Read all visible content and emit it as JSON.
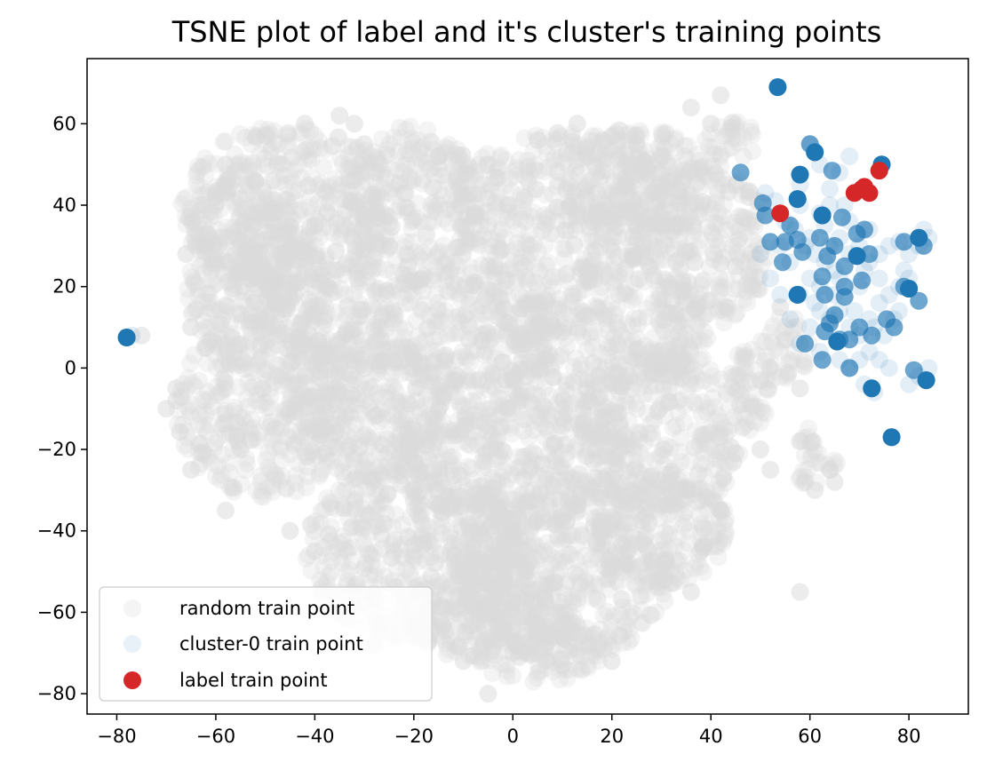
{
  "chart_data": {
    "type": "scatter",
    "title": "TSNE plot of label and it's cluster's training points",
    "xlabel": "",
    "ylabel": "",
    "xlim": [
      -86,
      92
    ],
    "ylim": [
      -85,
      76
    ],
    "x_ticks": [
      -80,
      -60,
      -40,
      -20,
      0,
      20,
      40,
      60,
      80
    ],
    "y_ticks": [
      60,
      40,
      20,
      0,
      -20,
      -40,
      -60,
      -80
    ],
    "x_tick_labels": [
      "−80",
      "−60",
      "−40",
      "−20",
      "0",
      "20",
      "40",
      "60",
      "80"
    ],
    "y_tick_labels": [
      "60",
      "40",
      "20",
      "0",
      "−20",
      "−40",
      "−60",
      "−80"
    ],
    "grid": false,
    "legend_position": "lower-left",
    "series": [
      {
        "name": "random train point",
        "color": "#d9d9d9",
        "opacity": 0.3,
        "regions": [
          {
            "cx": -45,
            "cy": 40,
            "rx": 22,
            "ry": 20
          },
          {
            "cx": -55,
            "cy": 25,
            "rx": 12,
            "ry": 22
          },
          {
            "cx": -40,
            "cy": 15,
            "rx": 16,
            "ry": 14
          },
          {
            "cx": -20,
            "cy": 40,
            "rx": 14,
            "ry": 20
          },
          {
            "cx": 10,
            "cy": 40,
            "rx": 22,
            "ry": 18
          },
          {
            "cx": 25,
            "cy": 45,
            "rx": 15,
            "ry": 14
          },
          {
            "cx": 38,
            "cy": 30,
            "rx": 14,
            "ry": 20
          },
          {
            "cx": -10,
            "cy": 10,
            "rx": 22,
            "ry": 16
          },
          {
            "cx": 20,
            "cy": 10,
            "rx": 20,
            "ry": 16
          },
          {
            "cx": -50,
            "cy": -10,
            "rx": 18,
            "ry": 22
          },
          {
            "cx": -30,
            "cy": -10,
            "rx": 16,
            "ry": 18
          },
          {
            "cx": 0,
            "cy": -20,
            "rx": 24,
            "ry": 20
          },
          {
            "cx": 30,
            "cy": -15,
            "rx": 18,
            "ry": 20
          },
          {
            "cx": -20,
            "cy": -45,
            "rx": 22,
            "ry": 22
          },
          {
            "cx": 10,
            "cy": -50,
            "rx": 22,
            "ry": 22
          },
          {
            "cx": 30,
            "cy": -40,
            "rx": 14,
            "ry": 14
          },
          {
            "cx": 5,
            "cy": -70,
            "rx": 14,
            "ry": 8
          },
          {
            "cx": -5,
            "cy": -60,
            "rx": 18,
            "ry": 12
          },
          {
            "cx": 48,
            "cy": -5,
            "rx": 5,
            "ry": 10
          },
          {
            "cx": 55,
            "cy": 5,
            "rx": 5,
            "ry": 8
          },
          {
            "cx": 44,
            "cy": 55,
            "rx": 6,
            "ry": 6
          },
          {
            "cx": 60,
            "cy": -22,
            "rx": 3,
            "ry": 8
          },
          {
            "cx": 64,
            "cy": -25,
            "rx": 2,
            "ry": 3
          }
        ],
        "points": [
          [
            -68,
            -8
          ],
          [
            -70,
            -10
          ],
          [
            -65,
            10
          ],
          [
            -75,
            8
          ],
          [
            -66,
            28
          ],
          [
            -62,
            30
          ],
          [
            -58,
            50
          ],
          [
            -50,
            57
          ],
          [
            -42,
            60
          ],
          [
            -35,
            62
          ],
          [
            -60,
            40
          ],
          [
            -30,
            55
          ],
          [
            -15,
            52
          ],
          [
            -5,
            50
          ],
          [
            5,
            56
          ],
          [
            13,
            60
          ],
          [
            20,
            57
          ],
          [
            25,
            55
          ],
          [
            30,
            52
          ],
          [
            36,
            64
          ],
          [
            40,
            60
          ],
          [
            42,
            67
          ],
          [
            45,
            45
          ],
          [
            45,
            25
          ],
          [
            43,
            15
          ],
          [
            -32,
            60
          ],
          [
            -48,
            22
          ],
          [
            -68,
            -5
          ],
          [
            -65,
            -25
          ],
          [
            -58,
            -35
          ],
          [
            -45,
            -40
          ],
          [
            -40,
            -45
          ],
          [
            -35,
            -60
          ],
          [
            -25,
            -65
          ],
          [
            -10,
            -72
          ],
          [
            0,
            -70
          ],
          [
            10,
            -73
          ],
          [
            20,
            -72
          ],
          [
            -5,
            -80
          ],
          [
            -17,
            -67
          ],
          [
            -28,
            -68
          ],
          [
            36,
            -55
          ],
          [
            35,
            -30
          ],
          [
            38,
            -45
          ],
          [
            42,
            -35
          ],
          [
            -55,
            -20
          ],
          [
            -62,
            5
          ],
          [
            55,
            7
          ],
          [
            54,
            15
          ],
          [
            58,
            -5
          ],
          [
            50,
            -3
          ],
          [
            58,
            -18
          ],
          [
            59,
            -28
          ],
          [
            61,
            -30
          ],
          [
            64,
            -25
          ],
          [
            65,
            -28
          ],
          [
            58,
            -55
          ],
          [
            50,
            -20
          ],
          [
            52,
            -25
          ],
          [
            25,
            35
          ],
          [
            -25,
            30
          ],
          [
            -40,
            35
          ],
          [
            15,
            -5
          ],
          [
            -15,
            -10
          ],
          [
            -5,
            25
          ],
          [
            30,
            0
          ],
          [
            -30,
            0
          ],
          [
            0,
            -40
          ],
          [
            20,
            -30
          ],
          [
            -20,
            -30
          ]
        ]
      },
      {
        "name": "cluster-0 train point",
        "color": "#1f77b4",
        "opacity": 0.12,
        "points": [
          [
            -77,
            8
          ],
          [
            51,
            43
          ],
          [
            53,
            41
          ],
          [
            55,
            36
          ],
          [
            57,
            34
          ],
          [
            59,
            30
          ],
          [
            61,
            28
          ],
          [
            63,
            26
          ],
          [
            65,
            24
          ],
          [
            60,
            22
          ],
          [
            62,
            20
          ],
          [
            58,
            18
          ],
          [
            66,
            14
          ],
          [
            64,
            12
          ],
          [
            68,
            10
          ],
          [
            70,
            8
          ],
          [
            56,
            26
          ],
          [
            54,
            30
          ],
          [
            52,
            22
          ],
          [
            50,
            28
          ],
          [
            62,
            38
          ],
          [
            66,
            32
          ],
          [
            70,
            30
          ],
          [
            72,
            26
          ],
          [
            74,
            22
          ],
          [
            76,
            18
          ],
          [
            78,
            14
          ],
          [
            80,
            28
          ],
          [
            82,
            30
          ],
          [
            84,
            32
          ],
          [
            83,
            34
          ],
          [
            78,
            31
          ],
          [
            72,
            4
          ],
          [
            74,
            2
          ],
          [
            76,
            0
          ],
          [
            80,
            -4
          ],
          [
            82,
            -2
          ],
          [
            84,
            0
          ],
          [
            73,
            -6
          ],
          [
            71,
            -4
          ],
          [
            60,
            55
          ],
          [
            62,
            50
          ],
          [
            58,
            45
          ],
          [
            64,
            40
          ],
          [
            68,
            36
          ],
          [
            60,
            10
          ],
          [
            58,
            6
          ],
          [
            62,
            4
          ],
          [
            66,
            2
          ],
          [
            68,
            0
          ],
          [
            70,
            2
          ],
          [
            72,
            12
          ],
          [
            74,
            16
          ],
          [
            70,
            20
          ],
          [
            66,
            22
          ],
          [
            62,
            14
          ],
          [
            56,
            12
          ],
          [
            54,
            18
          ],
          [
            60,
            32
          ],
          [
            64,
            30
          ],
          [
            68,
            28
          ],
          [
            72,
            34
          ],
          [
            76,
            30
          ],
          [
            80,
            22
          ],
          [
            78,
            20
          ],
          [
            74,
            28
          ],
          [
            58,
            40
          ],
          [
            64,
            44
          ],
          [
            66,
            48
          ],
          [
            68,
            52
          ],
          [
            63,
            35
          ],
          [
            67,
            40
          ],
          [
            61,
            16
          ],
          [
            65,
            18
          ],
          [
            69,
            14
          ],
          [
            71,
            24
          ],
          [
            73,
            10
          ],
          [
            75,
            8
          ],
          [
            77,
            12
          ],
          [
            79,
            24
          ]
        ]
      },
      {
        "name": "cluster-0 train point",
        "color": "#1f77b4",
        "opacity": 0.65,
        "points": [
          [
            -78,
            7.5
          ],
          [
            53.5,
            69
          ],
          [
            61,
            53
          ],
          [
            64.5,
            48.5
          ],
          [
            58,
            47.5
          ],
          [
            46,
            48
          ],
          [
            50.5,
            40.5
          ],
          [
            57.5,
            41.5
          ],
          [
            51,
            37.5
          ],
          [
            62.5,
            37.5
          ],
          [
            56,
            35
          ],
          [
            66.5,
            37
          ],
          [
            69.5,
            33
          ],
          [
            71,
            34
          ],
          [
            52,
            31
          ],
          [
            57.5,
            31.5
          ],
          [
            62,
            32
          ],
          [
            65,
            30
          ],
          [
            63.5,
            27.5
          ],
          [
            69.5,
            27.5
          ],
          [
            54.5,
            26
          ],
          [
            58.5,
            28.5
          ],
          [
            67,
            25
          ],
          [
            62.5,
            22.5
          ],
          [
            70.5,
            21.5
          ],
          [
            57.5,
            18
          ],
          [
            63,
            18
          ],
          [
            67,
            17.5
          ],
          [
            65,
            13
          ],
          [
            64,
            11
          ],
          [
            66,
            7
          ],
          [
            59,
            6
          ],
          [
            68,
            7
          ],
          [
            72.5,
            8
          ],
          [
            75.5,
            12
          ],
          [
            77,
            10
          ],
          [
            79,
            20
          ],
          [
            80,
            19.5
          ],
          [
            82,
            16.5
          ],
          [
            82,
            32
          ],
          [
            79,
            31
          ],
          [
            83,
            30
          ],
          [
            62.5,
            2
          ],
          [
            68,
            0
          ],
          [
            81,
            -0.5
          ],
          [
            83.5,
            -3
          ],
          [
            72.5,
            -5
          ],
          [
            76.5,
            -17
          ],
          [
            74.5,
            50
          ],
          [
            60,
            55
          ],
          [
            55,
            31
          ],
          [
            67,
            20
          ],
          [
            63,
            9
          ],
          [
            72,
            28
          ],
          [
            70,
            10
          ]
        ]
      },
      {
        "name": "cluster-0 train point",
        "color": "#1f77b4",
        "opacity": 1.0,
        "points": [
          [
            -78,
            7.5
          ],
          [
            53.5,
            69
          ],
          [
            61,
            53
          ],
          [
            62.5,
            37.5
          ],
          [
            65.5,
            6.5
          ],
          [
            57.5,
            18
          ],
          [
            69.5,
            27.5
          ],
          [
            82,
            32
          ],
          [
            83.5,
            -3
          ],
          [
            76.5,
            -17
          ],
          [
            72.5,
            -5
          ],
          [
            58,
            47.5
          ],
          [
            57.5,
            41.5
          ],
          [
            74.5,
            50
          ],
          [
            80,
            19.5
          ]
        ]
      },
      {
        "name": "label train point",
        "color": "#d62728",
        "opacity": 1.0,
        "points": [
          [
            54,
            38
          ],
          [
            69,
            43
          ],
          [
            70.5,
            44
          ],
          [
            71,
            44.5
          ],
          [
            72,
            43
          ],
          [
            74,
            48.5
          ]
        ]
      }
    ]
  }
}
